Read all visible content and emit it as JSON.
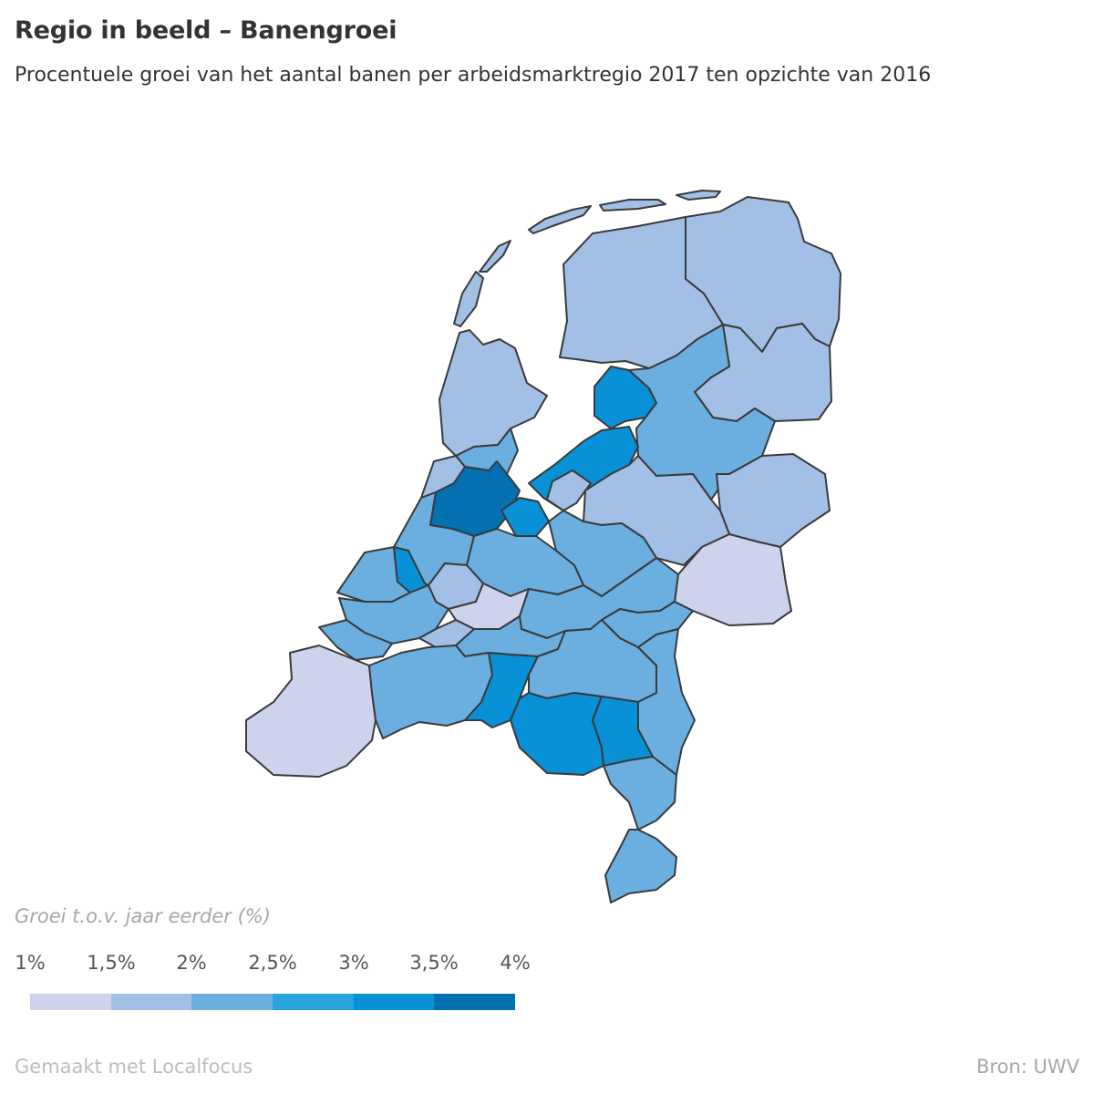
{
  "header": {
    "title": "Regio in beeld – Banengroei",
    "subtitle": "Procentuele groei van het aantal banen per arbeidsmarktregio 2017 ten opzichte van 2016"
  },
  "legend": {
    "title": "Groei t.o.v. jaar eerder (%)",
    "ticks": [
      "1%",
      "1,5%",
      "2%",
      "2,5%",
      "3%",
      "3,5%",
      "4%"
    ],
    "colors": [
      "#cdd3ec",
      "#a2c0e6",
      "#6aafe0",
      "#28a3dd",
      "#0891d7",
      "#0270b1"
    ]
  },
  "footer": {
    "made_with": "Gemaakt met Localfocus",
    "source": "Bron:  UWV"
  }
}
